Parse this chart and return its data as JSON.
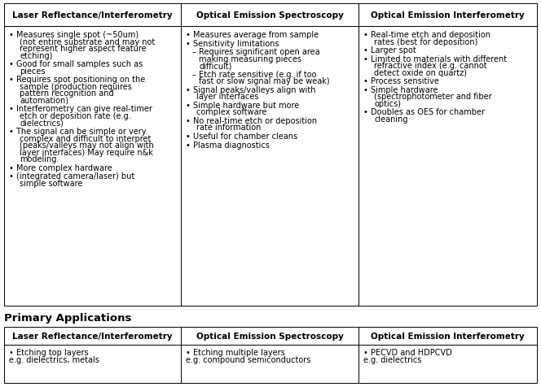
{
  "header_row": [
    "Laser Reflectance/Interferometry",
    "Optical Emission Spectroscopy",
    "Optical Emission Interferometry"
  ],
  "col1_bullets": [
    "Measures single spot (~50um)\n(not entire substrate and may not\nrepresent higher aspect feature\netching)",
    "Good for small samples such as\npieces",
    "Requires spot positioning on the\nsample (production requires\npattern recognition and\nautomation)",
    "Interferometry can give real-timer\netch or deposition rate (e.g.\ndielectrics)",
    "The signal can be simple or very\ncomplex and difficult to interpret\n(peaks/valleys may not align with\nlayer interfaces) May require n&k\nmodeling.",
    "More complex hardware",
    "(integrated camera/laser) but\nsimple software"
  ],
  "col2_bullets": [
    "Measures average from sample",
    "Sensitivity limitations",
    "DASH Requires significant open area\nmaking measuring pieces\ndifficult)",
    "DASH Etch rate sensitive (e.g. if too\nfast or slow signal may be weak)",
    "Signal peaks/valleys align with\nlayer interfaces",
    "Simple hardware but more\ncomplex software",
    "No real-time etch or deposition\nrate information",
    "Useful for chamber cleans",
    "Plasma diagnostics"
  ],
  "col3_bullets": [
    "Real-time etch and deposition\nrates (best for deposition)",
    "Larger spot",
    "Limited to materials with different\nrefractive index (e.g. cannot\ndetect oxide on quartz)",
    "Process sensitive",
    "Simple hardware\n(spectrophotometer and fiber\noptics)",
    "Doubles as OES for chamber\ncleaning"
  ],
  "primary_label": "Primary Applications",
  "primary_header": [
    "Laser Reflectance/Interferometry",
    "Optical Emission Spectroscopy",
    "Optical Emission Interferometry"
  ],
  "primary_col1": "• Etching top layers\ne.g. dielectrics, metals",
  "primary_col2": "• Etching multiple layers\ne.g. compound semiconductors",
  "primary_col3": "• PECVD and HDPCVD\ne.g. dielectrics",
  "bg_color": "#ffffff",
  "text_color": "#000000",
  "font_size": 7.0,
  "header_font_size": 7.5
}
